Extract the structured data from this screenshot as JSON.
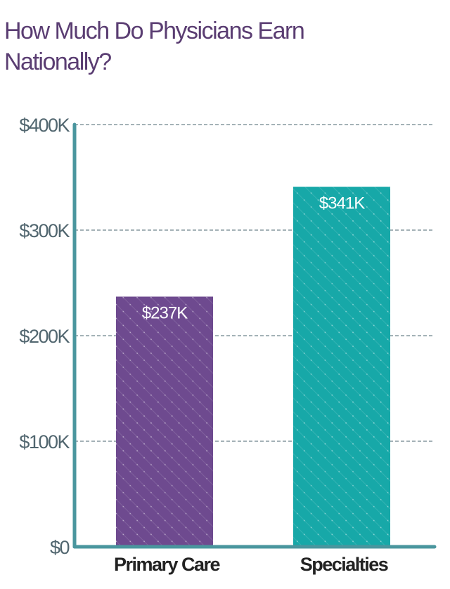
{
  "chart_data": {
    "type": "bar",
    "title": "How Much Do Physicians Earn Nationally?",
    "categories": [
      "Primary Care",
      "Specialties"
    ],
    "values": [
      237,
      341
    ],
    "data_labels": [
      "$237K",
      "$341K"
    ],
    "units": "thousands of USD",
    "ylim": [
      0,
      400
    ],
    "yticks": [
      0,
      100,
      200,
      300,
      400
    ],
    "ytick_labels": [
      "$0",
      "$100K",
      "$200K",
      "$300K",
      "$400K"
    ],
    "xlabel": "",
    "ylabel": "",
    "grid": "horizontal dashed",
    "legend": "none",
    "colors": {
      "bars": [
        "#6e4a8f",
        "#17a8a8"
      ],
      "axis": "#4a969e",
      "grid": "#6d848c",
      "title": "#5a3d72"
    }
  }
}
